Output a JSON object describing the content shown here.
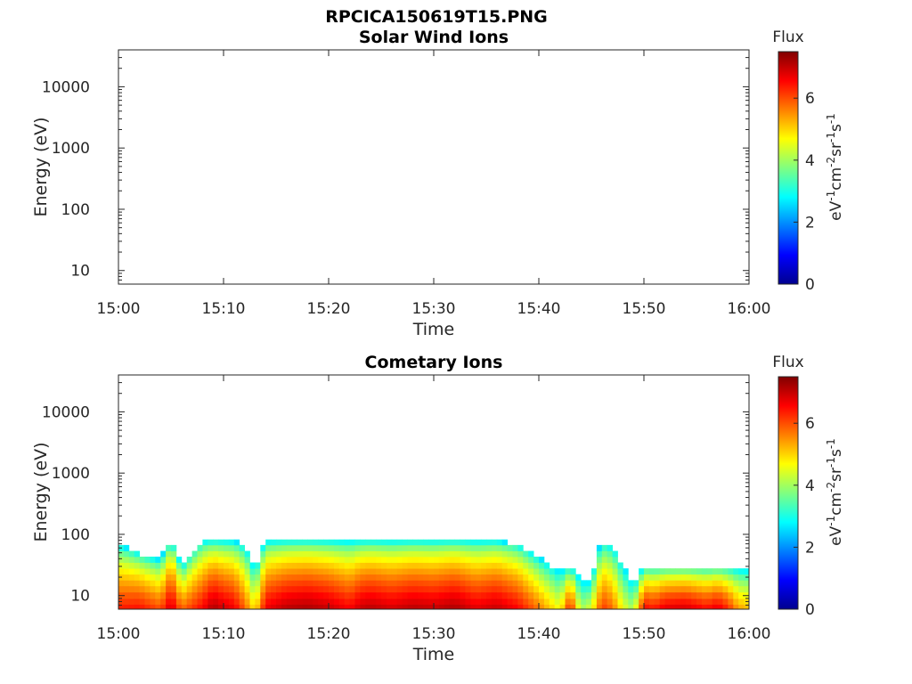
{
  "figure": {
    "title": "RPCICA150619T15.PNG"
  },
  "chart_data": [
    {
      "type": "heatmap",
      "title": "Solar Wind Ions",
      "xlabel": "Time",
      "ylabel": "Energy (eV)",
      "x_ticks": [
        "15:00",
        "15:10",
        "15:20",
        "15:30",
        "15:40",
        "15:50",
        "16:00"
      ],
      "x_range_minutes": [
        0,
        60
      ],
      "y_scale": "log",
      "y_ticks": [
        10,
        100,
        1000,
        10000
      ],
      "y_tick_labels": [
        "10",
        "100",
        "1000",
        "10000"
      ],
      "y_range": [
        6,
        40000
      ],
      "colorbar": {
        "label": "Flux",
        "unit_label": "eV-1cm-2sr-1s-1",
        "range": [
          0,
          7.5
        ],
        "ticks": [
          "0",
          "2",
          "4",
          "6"
        ],
        "colormap": "jet"
      },
      "cells": []
    },
    {
      "type": "heatmap",
      "title": "Cometary Ions",
      "xlabel": "Time",
      "ylabel": "Energy (eV)",
      "x_ticks": [
        "15:00",
        "15:10",
        "15:20",
        "15:30",
        "15:40",
        "15:50",
        "16:00"
      ],
      "x_range_minutes": [
        0,
        60
      ],
      "y_scale": "log",
      "y_ticks": [
        10,
        100,
        1000,
        10000
      ],
      "y_tick_labels": [
        "10",
        "100",
        "1000",
        "10000"
      ],
      "y_range": [
        6,
        40000
      ],
      "colorbar": {
        "label": "Flux",
        "unit_label": "eV-1cm-2sr-1s-1",
        "range": [
          0,
          7.5
        ],
        "ticks": [
          "0",
          "2",
          "4",
          "6"
        ],
        "colormap": "jet"
      },
      "energy_bins_eV": [
        6.5,
        8,
        10,
        13,
        16,
        20,
        25,
        31,
        39,
        48,
        60,
        75
      ],
      "time_profile": {
        "minutes": [
          0,
          2,
          4,
          5,
          6,
          8,
          9,
          10,
          11,
          12,
          13,
          14,
          16,
          18,
          20,
          22,
          23,
          24,
          26,
          28,
          30,
          32,
          34,
          36,
          38,
          40,
          42,
          43,
          44,
          45,
          46,
          47,
          48,
          49,
          50,
          51,
          52,
          54,
          56,
          57,
          58,
          59,
          60
        ],
        "peak_flux": [
          6.4,
          6.5,
          6.0,
          7.0,
          5.8,
          6.6,
          7.2,
          6.9,
          6.7,
          5.9,
          4.8,
          6.7,
          7.1,
          7.2,
          7.0,
          6.6,
          7.0,
          7.1,
          6.9,
          7.1,
          7.0,
          7.2,
          6.8,
          7.0,
          6.6,
          5.7,
          4.6,
          6.5,
          4.0,
          4.5,
          6.2,
          5.8,
          4.6,
          4.0,
          6.6,
          6.4,
          6.8,
          6.9,
          6.5,
          6.8,
          6.3,
          5.4,
          5.2
        ],
        "top_energy_eV": [
          70,
          50,
          40,
          80,
          30,
          80,
          80,
          80,
          80,
          70,
          30,
          80,
          80,
          80,
          80,
          80,
          80,
          80,
          80,
          80,
          80,
          80,
          80,
          80,
          70,
          45,
          30,
          30,
          25,
          20,
          80,
          70,
          40,
          20,
          30,
          30,
          30,
          30,
          30,
          30,
          30,
          30,
          30
        ]
      }
    }
  ]
}
